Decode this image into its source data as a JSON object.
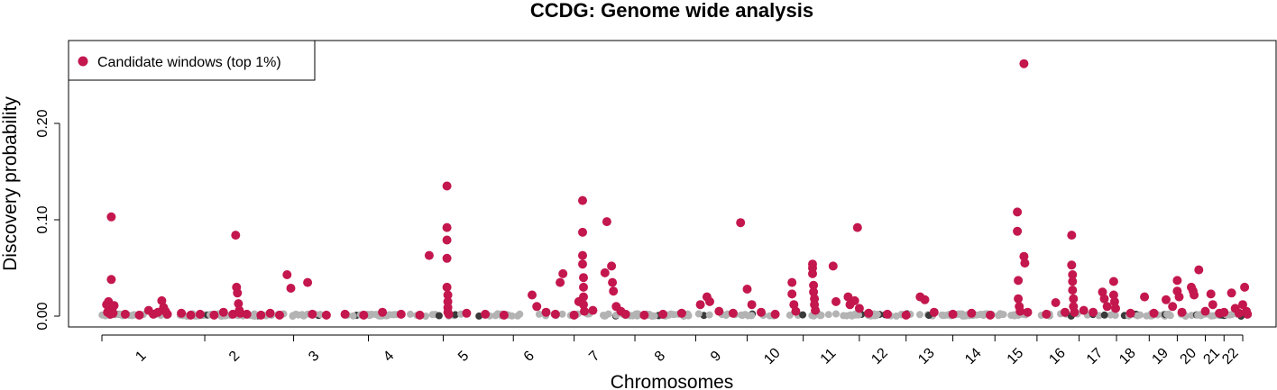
{
  "chart_data": {
    "type": "scatter",
    "title": "CCDG: Genome wide analysis",
    "xlabel": "Chromosomes",
    "ylabel": "Discovery probability",
    "ylim": [
      0,
      0.25
    ],
    "y_ticks": [
      "0.00",
      "0.10",
      "0.20"
    ],
    "y_tick_values": [
      0,
      0.1,
      0.2
    ],
    "x_range": [
      0,
      22
    ],
    "chromosomes": [
      "1",
      "2",
      "3",
      "4",
      "5",
      "6",
      "7",
      "8",
      "9",
      "10",
      "11",
      "12",
      "13",
      "14",
      "15",
      "16",
      "17",
      "18",
      "19",
      "20",
      "21",
      "22"
    ],
    "chromosome_tick_positions": [
      0.45,
      1.45,
      2.3,
      3.1,
      3.9,
      4.6,
      5.3,
      6.0,
      6.6,
      7.2,
      7.8,
      8.35,
      8.85,
      9.35,
      9.8,
      10.25,
      10.65,
      11.0,
      11.35,
      11.65,
      11.9,
      12.1
    ],
    "chromosome_boundaries": [
      0,
      1.1,
      2.05,
      2.85,
      3.65,
      4.4,
      5.05,
      5.7,
      6.35,
      6.9,
      7.5,
      8.1,
      8.6,
      9.1,
      9.55,
      10.0,
      10.45,
      10.85,
      11.2,
      11.5,
      11.8,
      12.0,
      12.2
    ],
    "legend": {
      "entries": [
        "Candidate windows (top 1%)"
      ],
      "position": "top-left"
    },
    "grid": false,
    "colors": {
      "candidate": "#c3174e",
      "background_points": "#b3b3b3",
      "dense_points": "#3a3a3a"
    },
    "series": [
      {
        "name": "Candidate windows (top 1%)",
        "points": [
          [
            0.05,
            0.012
          ],
          [
            0.06,
            0.004
          ],
          [
            0.07,
            0.015
          ],
          [
            0.08,
            0.008
          ],
          [
            0.09,
            0.002
          ],
          [
            0.1,
            0.103
          ],
          [
            0.1,
            0.038
          ],
          [
            0.11,
            0.006
          ],
          [
            0.12,
            0.003
          ],
          [
            0.13,
            0.011
          ],
          [
            0.25,
            0.002
          ],
          [
            0.4,
            0.001
          ],
          [
            0.5,
            0.006
          ],
          [
            0.55,
            0.002
          ],
          [
            0.6,
            0.004
          ],
          [
            0.64,
            0.016
          ],
          [
            0.66,
            0.009
          ],
          [
            0.68,
            0.005
          ],
          [
            0.7,
            0.002
          ],
          [
            0.85,
            0.003
          ],
          [
            0.95,
            0.001
          ],
          [
            1.05,
            0.002
          ],
          [
            1.2,
            0.001
          ],
          [
            1.3,
            0.004
          ],
          [
            1.4,
            0.002
          ],
          [
            1.43,
            0.084
          ],
          [
            1.44,
            0.03
          ],
          [
            1.45,
            0.024
          ],
          [
            1.46,
            0.013
          ],
          [
            1.47,
            0.006
          ],
          [
            1.48,
            0.003
          ],
          [
            1.55,
            0.002
          ],
          [
            1.7,
            0.001
          ],
          [
            1.8,
            0.003
          ],
          [
            1.9,
            0.001
          ],
          [
            1.98,
            0.043
          ],
          [
            2.02,
            0.029
          ],
          [
            2.2,
            0.035
          ],
          [
            2.25,
            0.002
          ],
          [
            2.4,
            0.001
          ],
          [
            2.6,
            0.002
          ],
          [
            2.8,
            0.001
          ],
          [
            3.0,
            0.004
          ],
          [
            3.2,
            0.002
          ],
          [
            3.4,
            0.001
          ],
          [
            3.5,
            0.063
          ],
          [
            3.69,
            0.135
          ],
          [
            3.69,
            0.092
          ],
          [
            3.69,
            0.079
          ],
          [
            3.69,
            0.06
          ],
          [
            3.69,
            0.03
          ],
          [
            3.7,
            0.022
          ],
          [
            3.7,
            0.015
          ],
          [
            3.7,
            0.009
          ],
          [
            3.7,
            0.004
          ],
          [
            3.71,
            0.002
          ],
          [
            3.9,
            0.003
          ],
          [
            4.1,
            0.002
          ],
          [
            4.3,
            0.001
          ],
          [
            4.6,
            0.022
          ],
          [
            4.65,
            0.01
          ],
          [
            4.75,
            0.004
          ],
          [
            4.85,
            0.002
          ],
          [
            4.9,
            0.035
          ],
          [
            4.93,
            0.044
          ],
          [
            5.05,
            0.001
          ],
          [
            5.1,
            0.015
          ],
          [
            5.14,
            0.12
          ],
          [
            5.14,
            0.087
          ],
          [
            5.14,
            0.063
          ],
          [
            5.14,
            0.054
          ],
          [
            5.15,
            0.04
          ],
          [
            5.15,
            0.03
          ],
          [
            5.15,
            0.02
          ],
          [
            5.15,
            0.012
          ],
          [
            5.16,
            0.005
          ],
          [
            5.25,
            0.006
          ],
          [
            5.38,
            0.045
          ],
          [
            5.4,
            0.098
          ],
          [
            5.45,
            0.052
          ],
          [
            5.46,
            0.035
          ],
          [
            5.47,
            0.026
          ],
          [
            5.5,
            0.01
          ],
          [
            5.55,
            0.005
          ],
          [
            5.6,
            0.002
          ],
          [
            5.8,
            0.001
          ],
          [
            6.0,
            0.002
          ],
          [
            6.2,
            0.003
          ],
          [
            6.4,
            0.012
          ],
          [
            6.47,
            0.02
          ],
          [
            6.5,
            0.015
          ],
          [
            6.6,
            0.005
          ],
          [
            6.75,
            0.003
          ],
          [
            6.83,
            0.097
          ],
          [
            6.9,
            0.028
          ],
          [
            6.95,
            0.012
          ],
          [
            7.05,
            0.004
          ],
          [
            7.2,
            0.002
          ],
          [
            7.38,
            0.035
          ],
          [
            7.38,
            0.023
          ],
          [
            7.4,
            0.012
          ],
          [
            7.42,
            0.005
          ],
          [
            7.6,
            0.054
          ],
          [
            7.6,
            0.05
          ],
          [
            7.6,
            0.044
          ],
          [
            7.61,
            0.032
          ],
          [
            7.61,
            0.025
          ],
          [
            7.62,
            0.018
          ],
          [
            7.62,
            0.012
          ],
          [
            7.63,
            0.006
          ],
          [
            7.82,
            0.052
          ],
          [
            7.85,
            0.015
          ],
          [
            7.98,
            0.02
          ],
          [
            8.0,
            0.012
          ],
          [
            8.05,
            0.016
          ],
          [
            8.08,
            0.092
          ],
          [
            8.1,
            0.008
          ],
          [
            8.2,
            0.003
          ],
          [
            8.4,
            0.002
          ],
          [
            8.6,
            0.001
          ],
          [
            8.75,
            0.02
          ],
          [
            8.8,
            0.017
          ],
          [
            8.9,
            0.004
          ],
          [
            9.1,
            0.002
          ],
          [
            9.3,
            0.003
          ],
          [
            9.5,
            0.001
          ],
          [
            9.79,
            0.108
          ],
          [
            9.79,
            0.088
          ],
          [
            9.8,
            0.037
          ],
          [
            9.8,
            0.018
          ],
          [
            9.81,
            0.01
          ],
          [
            9.82,
            0.005
          ],
          [
            9.86,
            0.262
          ],
          [
            9.86,
            0.062
          ],
          [
            9.87,
            0.055
          ],
          [
            9.9,
            0.004
          ],
          [
            10.1,
            0.002
          ],
          [
            10.2,
            0.014
          ],
          [
            10.3,
            0.004
          ],
          [
            10.37,
            0.084
          ],
          [
            10.37,
            0.053
          ],
          [
            10.38,
            0.043
          ],
          [
            10.38,
            0.036
          ],
          [
            10.38,
            0.027
          ],
          [
            10.39,
            0.018
          ],
          [
            10.39,
            0.01
          ],
          [
            10.4,
            0.004
          ],
          [
            10.5,
            0.006
          ],
          [
            10.6,
            0.004
          ],
          [
            10.7,
            0.025
          ],
          [
            10.72,
            0.018
          ],
          [
            10.75,
            0.01
          ],
          [
            10.82,
            0.036
          ],
          [
            10.82,
            0.022
          ],
          [
            10.83,
            0.015
          ],
          [
            10.84,
            0.008
          ],
          [
            11.0,
            0.003
          ],
          [
            11.15,
            0.02
          ],
          [
            11.25,
            0.003
          ],
          [
            11.38,
            0.017
          ],
          [
            11.45,
            0.01
          ],
          [
            11.5,
            0.026
          ],
          [
            11.5,
            0.037
          ],
          [
            11.52,
            0.02
          ],
          [
            11.55,
            0.004
          ],
          [
            11.65,
            0.03
          ],
          [
            11.67,
            0.026
          ],
          [
            11.68,
            0.022
          ],
          [
            11.73,
            0.048
          ],
          [
            11.8,
            0.005
          ],
          [
            11.86,
            0.023
          ],
          [
            11.88,
            0.012
          ],
          [
            11.95,
            0.003
          ],
          [
            12.0,
            0.004
          ],
          [
            12.08,
            0.024
          ],
          [
            12.12,
            0.008
          ],
          [
            12.16,
            0.003
          ],
          [
            12.2,
            0.012
          ],
          [
            12.22,
            0.03
          ],
          [
            12.24,
            0.005
          ],
          [
            12.25,
            0.002
          ]
        ]
      }
    ]
  }
}
